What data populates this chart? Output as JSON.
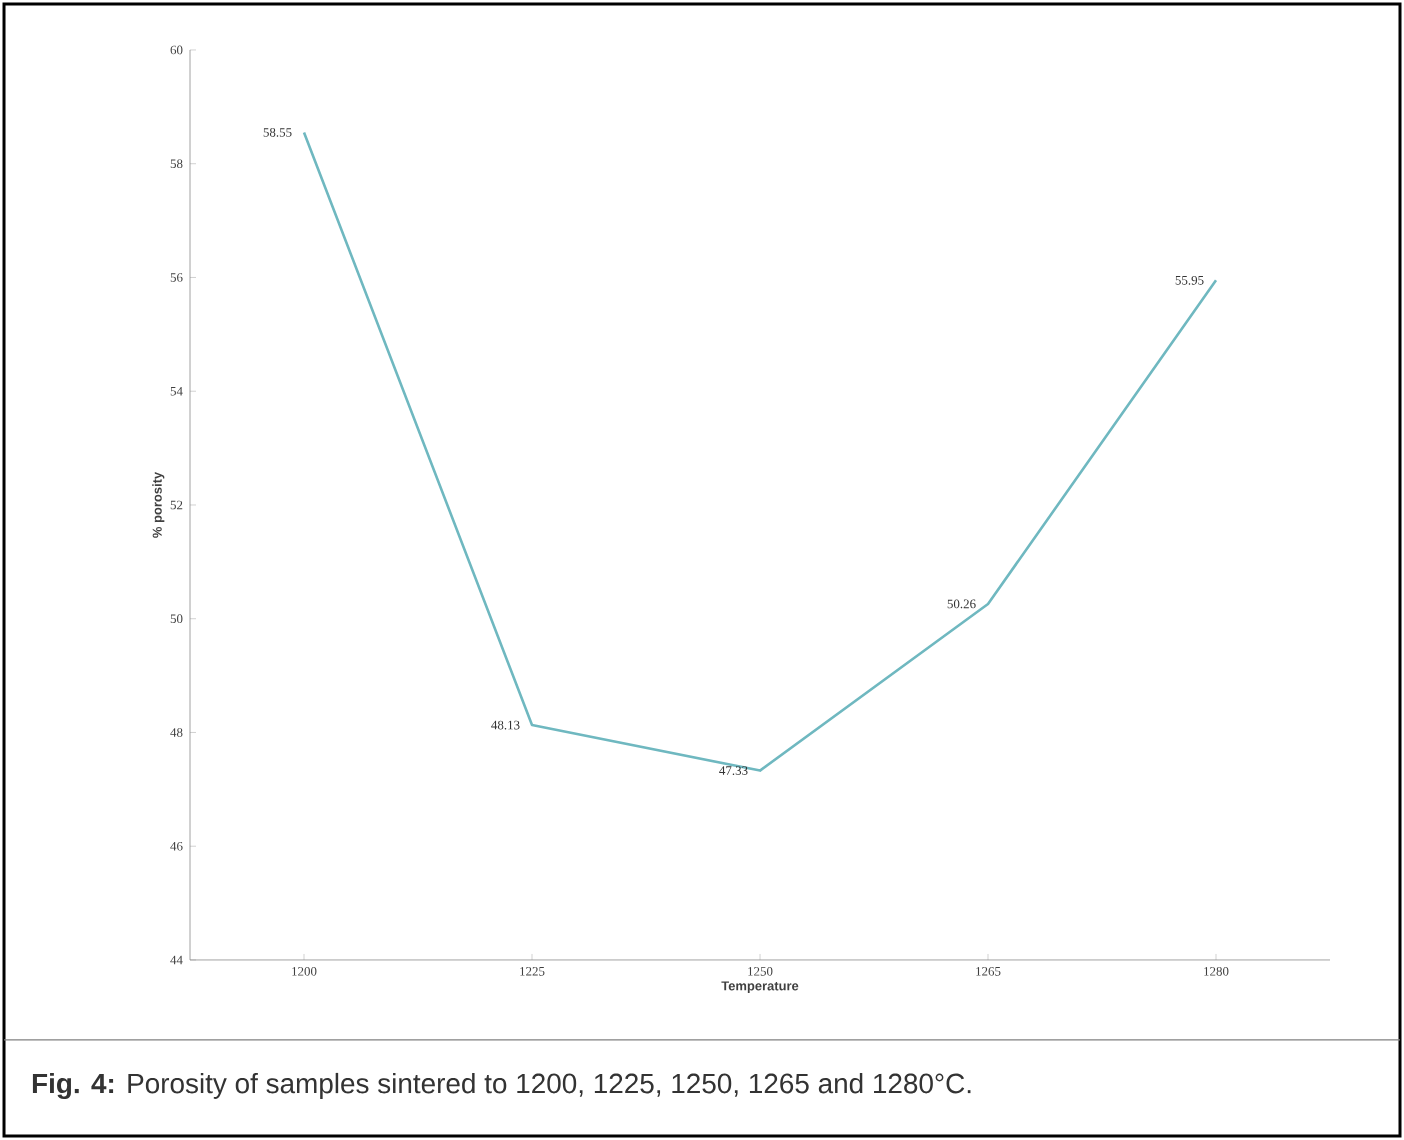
{
  "chart_data": {
    "type": "line",
    "xlabel": "Temperature",
    "ylabel": "% porosity",
    "categories": [
      "1200",
      "1225",
      "1250",
      "1265",
      "1280"
    ],
    "series": [
      {
        "color": "#6fb8c0",
        "values": [
          58.55,
          48.13,
          47.33,
          50.26,
          55.95
        ]
      }
    ],
    "ylim": [
      44,
      60
    ],
    "yticks": [
      44,
      46,
      48,
      50,
      52,
      54,
      56,
      58,
      60
    ],
    "data_labels": true,
    "grid": false,
    "marker": "none",
    "line_style": "solid",
    "annotations": [
      "**Fig. 4:** Porosity of samples sintered to 1200,  1225,  1250,  1265  and 1280°C."
    ]
  }
}
